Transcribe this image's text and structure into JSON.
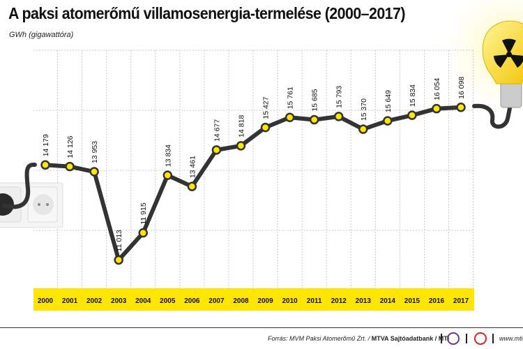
{
  "title": "A paksi atomerőmű villamosenergia-termelése (2000–2017)",
  "unit_label": "GWh (gigawattóra)",
  "chart_data": {
    "type": "line",
    "title": "A paksi atomerőmű villamosenergia-termelése (2000–2017)",
    "ylabel": "GWh (gigawattóra)",
    "categories": [
      "2000",
      "2001",
      "2002",
      "2003",
      "2004",
      "2005",
      "2006",
      "2007",
      "2008",
      "2009",
      "2010",
      "2011",
      "2012",
      "2013",
      "2014",
      "2015",
      "2016",
      "2017"
    ],
    "values": [
      14179,
      14126,
      13953,
      11013,
      11915,
      13834,
      13461,
      14677,
      14818,
      15427,
      15761,
      15685,
      15793,
      15370,
      15649,
      15834,
      16054,
      16098
    ],
    "value_labels": [
      "14 179",
      "14 126",
      "13 953",
      "11 013",
      "11 915",
      "13 834",
      "13 461",
      "14 677",
      "14 818",
      "15 427",
      "15 761",
      "15 685",
      "15 793",
      "15 370",
      "15 649",
      "15 834",
      "16 054",
      "16 098"
    ],
    "ylim": [
      10000,
      18000
    ],
    "grid": true,
    "colors": {
      "line": "#333333",
      "marker": "#ffe600",
      "axis_band": "#ffe600",
      "grid": "#c8c8d8"
    }
  },
  "footer": {
    "source_prefix": "Forrás: MVM Paksi Atomerőmű Zrt. / ",
    "source_bold": "MTVA Sajtóadatbank / MTI",
    "logo1": "MTVA",
    "site": "www.mti.hu"
  }
}
